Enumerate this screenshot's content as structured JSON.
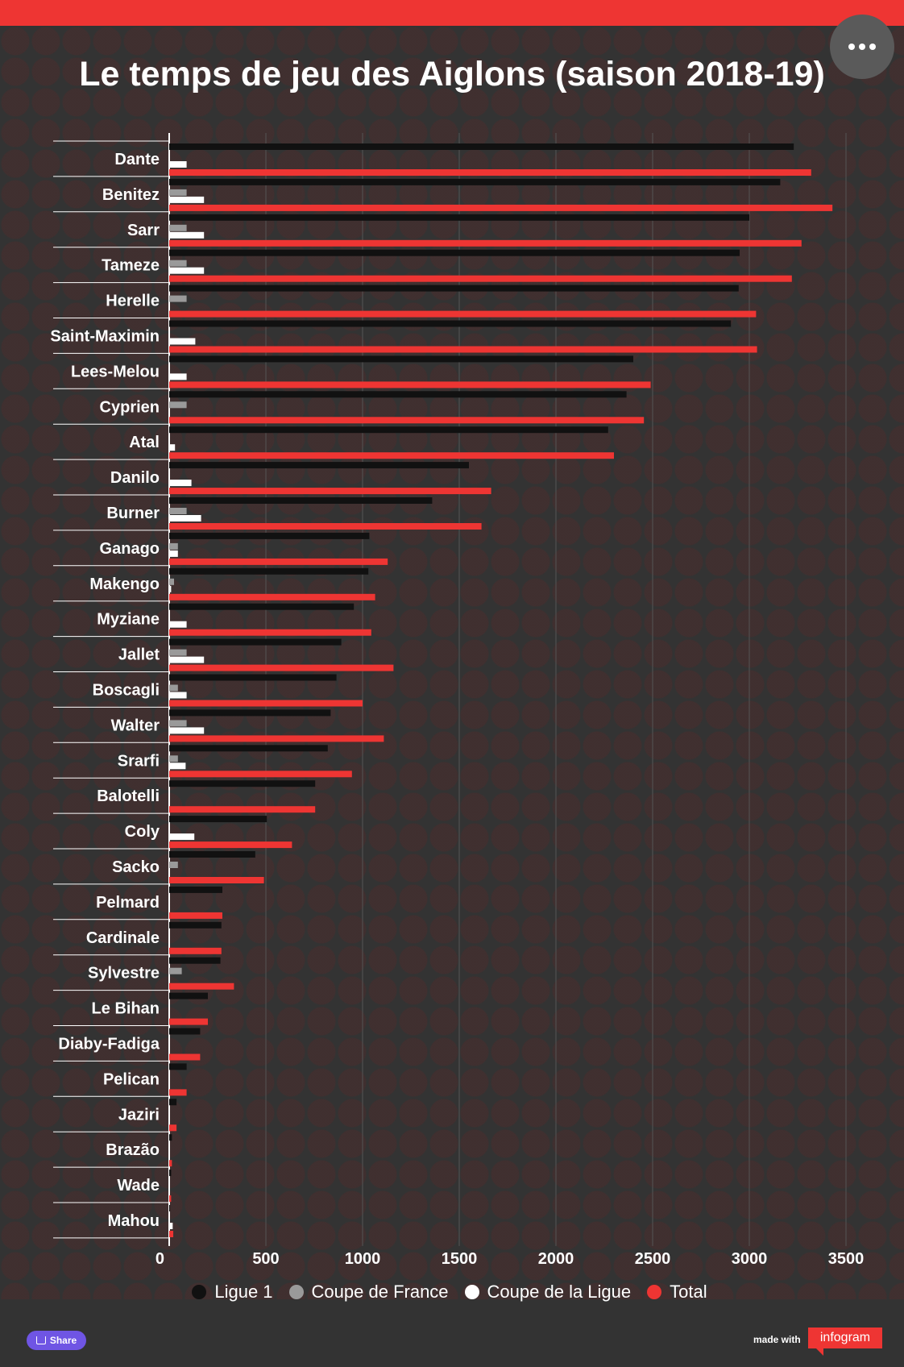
{
  "title": "Le temps de jeu des Aiglons (saison 2018-19)",
  "legend": [
    "Ligue 1",
    "Coupe de France",
    "Coupe de la Ligue",
    "Total"
  ],
  "footer": {
    "share_label": "Share",
    "made_with": "made with",
    "brand": "infogram"
  },
  "chart_data": {
    "type": "bar",
    "orientation": "horizontal",
    "title": "Le temps de jeu des Aiglons (saison 2018-19)",
    "xlim": [
      0,
      3500
    ],
    "x_ticks": [
      0,
      500,
      1000,
      1500,
      2000,
      2500,
      3000,
      3500
    ],
    "grid": true,
    "legend_position": "bottom",
    "categories": [
      "Dante",
      "Benitez",
      "Sarr",
      "Tameze",
      "Herelle",
      "Saint-Maximin",
      "Lees-Melou",
      "Cyprien",
      "Atal",
      "Danilo",
      "Burner",
      "Ganago",
      "Makengo",
      "Myziane",
      "Jallet",
      "Boscagli",
      "Walter",
      "Srarfi",
      "Balotelli",
      "Coly",
      "Sacko",
      "Pelmard",
      "Cardinale",
      "Sylvestre",
      "Le Bihan",
      "Diaby-Fadiga",
      "Pelican",
      "Jaziri",
      "Brazão",
      "Wade",
      "Mahou"
    ],
    "series": [
      {
        "name": "Ligue 1",
        "color": "#111111",
        "values": [
          3230,
          3160,
          3000,
          2950,
          2945,
          2905,
          2400,
          2365,
          2270,
          1550,
          1360,
          1035,
          1030,
          955,
          890,
          865,
          835,
          820,
          755,
          505,
          445,
          275,
          270,
          265,
          200,
          160,
          90,
          38,
          14,
          10,
          3
        ]
      },
      {
        "name": "Coupe de France",
        "color": "#9a9a9a",
        "values": [
          0,
          90,
          90,
          90,
          90,
          0,
          0,
          90,
          0,
          0,
          90,
          45,
          25,
          0,
          90,
          45,
          90,
          45,
          0,
          0,
          45,
          0,
          0,
          65,
          0,
          0,
          0,
          0,
          0,
          0,
          0
        ]
      },
      {
        "name": "Coupe de la Ligue",
        "color": "#ffffff",
        "values": [
          90,
          180,
          180,
          180,
          0,
          135,
          90,
          0,
          30,
          115,
          165,
          45,
          10,
          90,
          180,
          90,
          180,
          85,
          0,
          130,
          0,
          0,
          0,
          0,
          0,
          0,
          0,
          0,
          0,
          0,
          18
        ]
      },
      {
        "name": "Total",
        "color": "#ee3533",
        "values": [
          3320,
          3430,
          3270,
          3220,
          3035,
          3040,
          2490,
          2455,
          2300,
          1665,
          1615,
          1130,
          1065,
          1045,
          1160,
          1000,
          1110,
          945,
          755,
          635,
          490,
          275,
          270,
          335,
          200,
          160,
          90,
          38,
          14,
          10,
          21
        ]
      }
    ]
  }
}
